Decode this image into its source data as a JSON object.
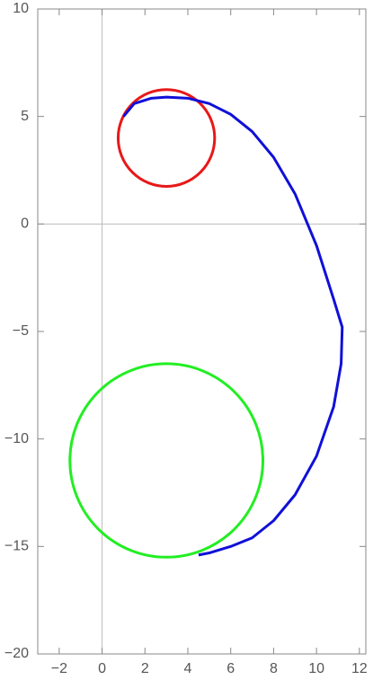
{
  "chart_data": {
    "type": "parametric",
    "xlim": [
      -3,
      12.3
    ],
    "ylim": [
      -20,
      10
    ],
    "xticks": [
      {
        "value": -2,
        "label": "−2"
      },
      0,
      2,
      4,
      6,
      8,
      10,
      12
    ],
    "yticks": [
      {
        "value": -20,
        "label": "−20"
      },
      {
        "value": -15,
        "label": "−15"
      },
      {
        "value": -10,
        "label": "−10"
      },
      {
        "value": -5,
        "label": "−5"
      },
      0,
      5,
      10
    ],
    "axes_lines": true,
    "circles": [
      {
        "color": "#e81818",
        "cx": 3,
        "cy": 4,
        "r": 2.25
      },
      {
        "color": "#22ee22",
        "cx": 3,
        "cy": -11,
        "r": 4.5
      }
    ],
    "series": [
      {
        "color": "#1010d8",
        "x": [
          1.0,
          1.5,
          2.3,
          3,
          4,
          5,
          6,
          7,
          8,
          9,
          10,
          10.8,
          11.2,
          11.15,
          10.8,
          10,
          9,
          8,
          7,
          6,
          5,
          4.5
        ],
        "values": [
          5.0,
          5.6,
          5.85,
          5.9,
          5.85,
          5.6,
          5.1,
          4.3,
          3.1,
          1.4,
          -1.0,
          -3.5,
          -4.8,
          -6.5,
          -8.5,
          -10.8,
          -12.6,
          -13.8,
          -14.6,
          -15.0,
          -15.3,
          -15.4
        ]
      }
    ]
  }
}
